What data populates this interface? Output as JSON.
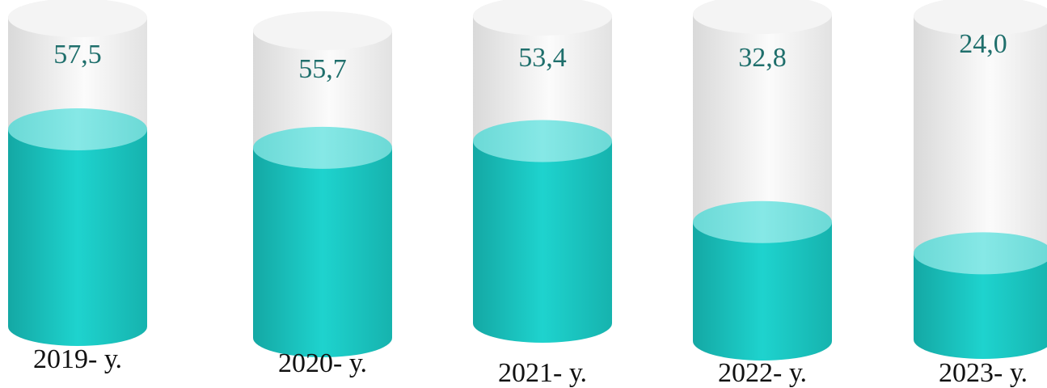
{
  "chart_data": {
    "type": "bar",
    "title": "",
    "xlabel": "",
    "ylabel": "",
    "categories": [
      "2019- у.",
      "2020- у.",
      "2021- у.",
      "2022- у.",
      "2023- у."
    ],
    "values": [
      57.5,
      55.7,
      53.4,
      32.8,
      24.0
    ],
    "value_labels": [
      "57,5",
      "55,7",
      "53,4",
      "32,8",
      "24,0"
    ],
    "ylim": [
      0,
      90
    ],
    "grid": false,
    "legend": "none",
    "colors": {
      "fill": "#1ECFCA",
      "fill_dark": "#14A8A4",
      "fill_top": "#7CE3E1",
      "glass": "#E6E6E6",
      "glass_light": "#FAFAFA",
      "text": "#1F6F6C",
      "label_text": "#111111"
    }
  }
}
